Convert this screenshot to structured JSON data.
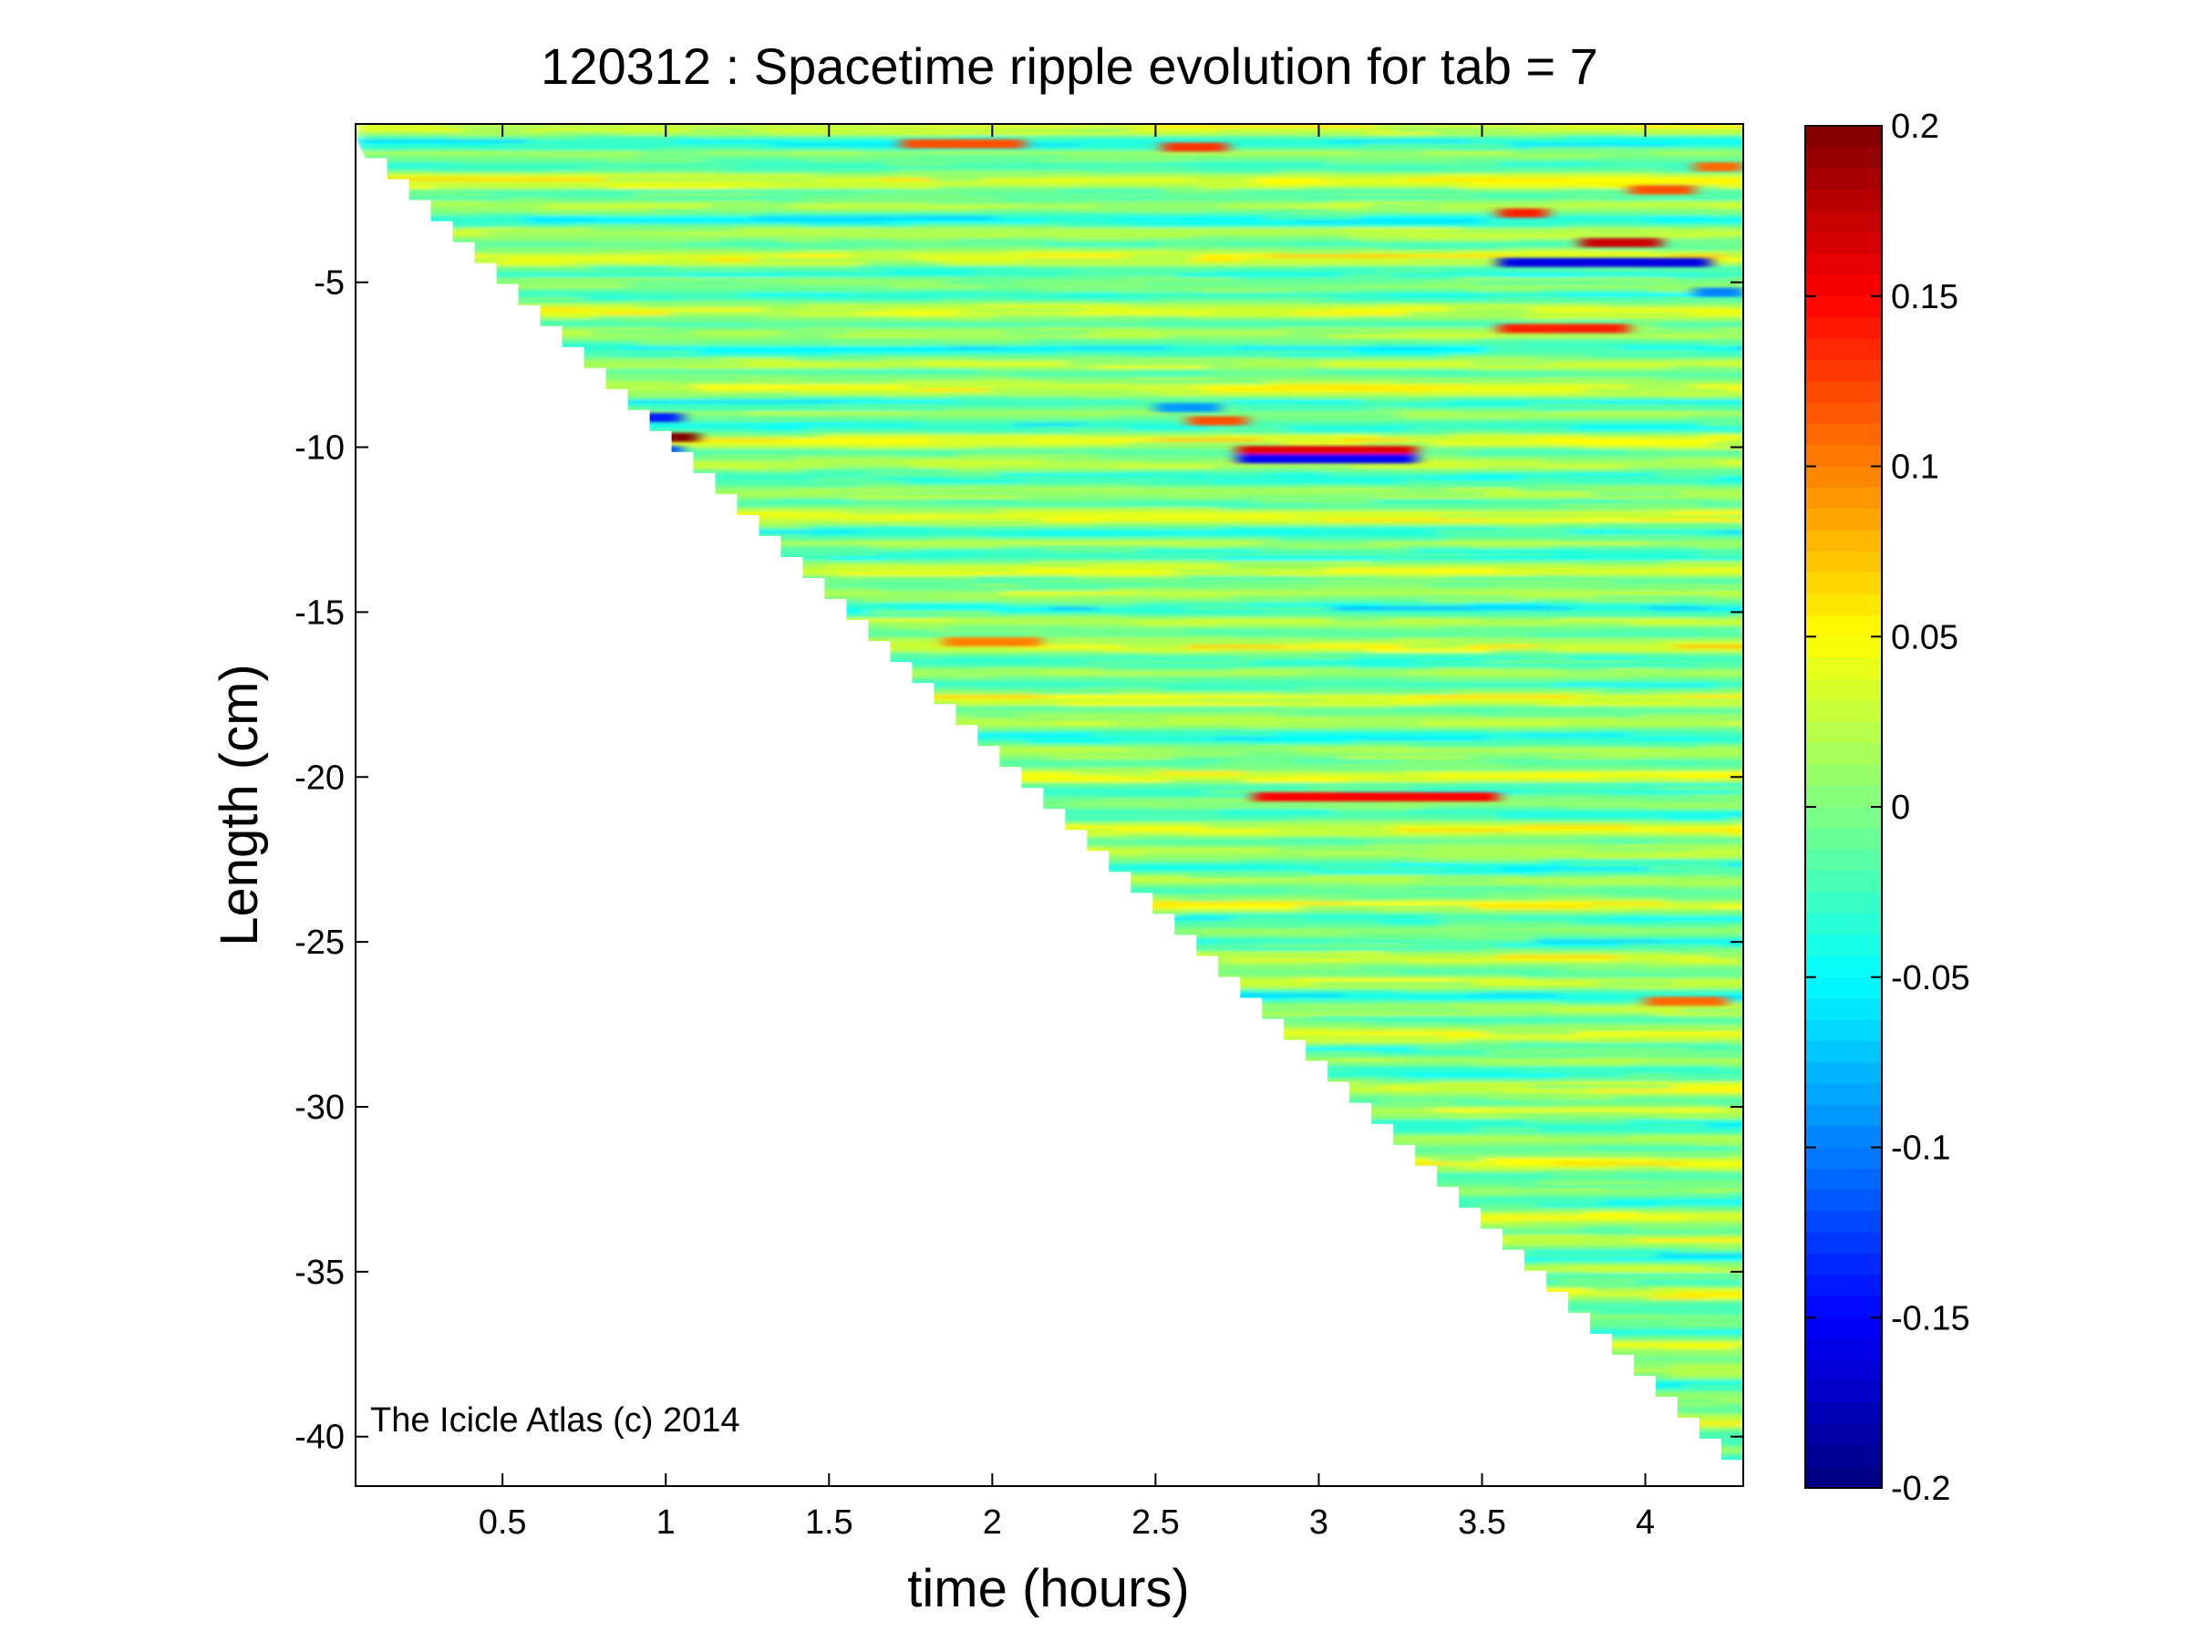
{
  "chart_data": {
    "type": "heatmap",
    "title": "120312 : Spacetime ripple evolution for tab = 7",
    "xlabel": "time (hours)",
    "ylabel": "Length (cm)",
    "xlim": [
      0.05,
      4.3
    ],
    "ylim": [
      -41.5,
      -0.2
    ],
    "xticks": [
      0.5,
      1,
      1.5,
      2,
      2.5,
      3,
      3.5,
      4
    ],
    "xtick_labels": [
      "0.5",
      "1",
      "1.5",
      "2",
      "2.5",
      "3",
      "3.5",
      "4"
    ],
    "yticks": [
      -5,
      -10,
      -15,
      -20,
      -25,
      -30,
      -35,
      -40
    ],
    "ytick_labels": [
      "-5",
      "-10",
      "-15",
      "-20",
      "-25",
      "-30",
      "-35",
      "-40"
    ],
    "colorbar": {
      "clim": [
        -0.2,
        0.2
      ],
      "colormap": "jet",
      "ticks": [
        0.2,
        0.15,
        0.1,
        0.05,
        0,
        -0.05,
        -0.1,
        -0.15,
        -0.2
      ],
      "tick_labels": [
        "0.2",
        "0.15",
        "0.1",
        "0.05",
        "0",
        "-0.05",
        "-0.1",
        "-0.15",
        "-0.2"
      ]
    },
    "front": {
      "description_points": [
        [
          0.08,
          -0.6
        ],
        [
          4.3,
          -40.7
        ]
      ]
    },
    "features": [
      {
        "t": [
          0.88,
          1.1
        ],
        "y": -9.7,
        "value": 0.2
      },
      {
        "t": [
          0.88,
          1.05
        ],
        "y": -9.1,
        "value": -0.14
      },
      {
        "t": [
          0.88,
          1.05
        ],
        "y": -10.1,
        "value": -0.12
      },
      {
        "t": [
          1.72,
          2.1
        ],
        "y": -0.8,
        "value": 0.12
      },
      {
        "t": [
          2.52,
          2.72
        ],
        "y": -0.9,
        "value": 0.13
      },
      {
        "t": [
          2.6,
          2.78
        ],
        "y": -9.2,
        "value": 0.12
      },
      {
        "t": [
          2.75,
          3.3
        ],
        "y": -10.1,
        "value": 0.16
      },
      {
        "t": [
          2.75,
          3.3
        ],
        "y": -10.35,
        "value": -0.15
      },
      {
        "t": [
          2.8,
          3.55
        ],
        "y": -20.6,
        "value": 0.15
      },
      {
        "t": [
          3.55,
          3.7
        ],
        "y": -2.9,
        "value": 0.14
      },
      {
        "t": [
          3.55,
          4.2
        ],
        "y": -4.4,
        "value": -0.16
      },
      {
        "t": [
          3.8,
          4.05
        ],
        "y": -3.8,
        "value": 0.17
      },
      {
        "t": [
          3.55,
          3.95
        ],
        "y": -6.4,
        "value": 0.14
      },
      {
        "t": [
          3.95,
          4.15
        ],
        "y": -2.2,
        "value": 0.12
      },
      {
        "t": [
          4.15,
          4.3
        ],
        "y": -1.5,
        "value": 0.11
      },
      {
        "t": [
          4.15,
          4.3
        ],
        "y": -5.3,
        "value": -0.1
      },
      {
        "t": [
          4.0,
          4.25
        ],
        "y": -26.8,
        "value": 0.11
      },
      {
        "t": [
          1.85,
          2.15
        ],
        "y": -15.9,
        "value": 0.1
      },
      {
        "t": [
          2.5,
          2.7
        ],
        "y": -8.8,
        "value": -0.09
      }
    ],
    "annotations": [
      "The Icicle Atlas (c) 2014"
    ]
  }
}
